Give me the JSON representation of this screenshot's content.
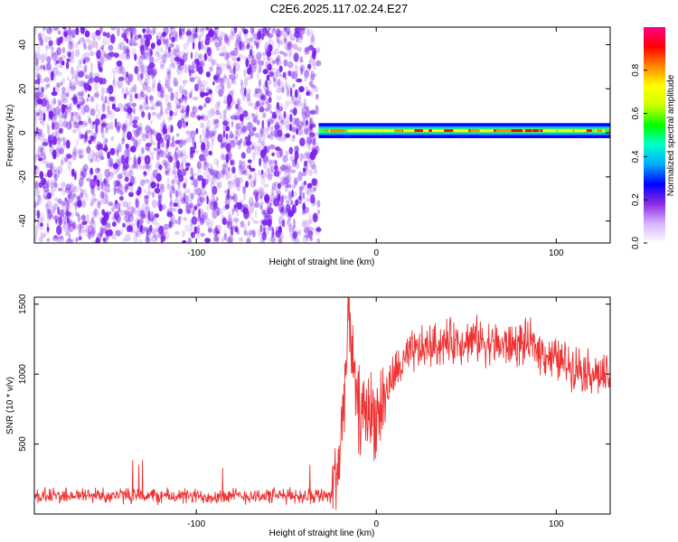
{
  "title": "C2E6.2025.117.02.24.E27",
  "colors": {
    "snr_line": "#ee3333",
    "noise_dot": "#7b22ee",
    "frame": "#000000"
  },
  "chart_data": [
    {
      "type": "heatmap",
      "xlabel": "Height of straight line (km)",
      "ylabel": "Frequency (Hz)",
      "xlim": [
        -190,
        130
      ],
      "ylim": [
        -50,
        48
      ],
      "xticks": [
        -100,
        0,
        100
      ],
      "yticks": [
        -40,
        -20,
        0,
        20,
        40
      ],
      "colorbar": {
        "label": "Normalized spectral amplitude",
        "range": [
          0,
          1
        ],
        "ticks": [
          "0.0",
          "0.2",
          "0.4",
          "0.6",
          "0.8"
        ],
        "colormap": [
          "#ffffff",
          "#d6b3ff",
          "#8a2be2",
          "#0000ff",
          "#00aaff",
          "#00ffcc",
          "#00ff00",
          "#ccff00",
          "#ffff00",
          "#ff8800",
          "#ff0000",
          "#ff0088"
        ]
      },
      "noise_region_x": [
        -190,
        -32
      ],
      "signal_band": {
        "x": [
          -32,
          130
        ],
        "center_hz": 1.0,
        "halfwidth_hz": 3.0
      }
    },
    {
      "type": "line",
      "xlabel": "Height of straight line (km)",
      "ylabel": "SNR (10 * v/v)",
      "xlim": [
        -190,
        130
      ],
      "ylim": [
        0,
        1550
      ],
      "xticks": [
        -100,
        0,
        100
      ],
      "yticks": [
        500,
        1000,
        1500
      ],
      "series": [
        {
          "x": [
            -190,
            -160,
            -130,
            -100,
            -70,
            -40,
            -25,
            -20,
            -18,
            -16,
            -15,
            -12,
            -8,
            -5,
            0,
            10,
            20,
            30,
            40,
            55,
            70,
            85,
            100,
            115,
            130
          ],
          "values": [
            130,
            135,
            130,
            125,
            130,
            130,
            140,
            450,
            900,
            1150,
            1550,
            850,
            700,
            750,
            700,
            1000,
            1150,
            1200,
            1230,
            1250,
            1200,
            1220,
            1100,
            1040,
            960
          ]
        }
      ]
    }
  ]
}
